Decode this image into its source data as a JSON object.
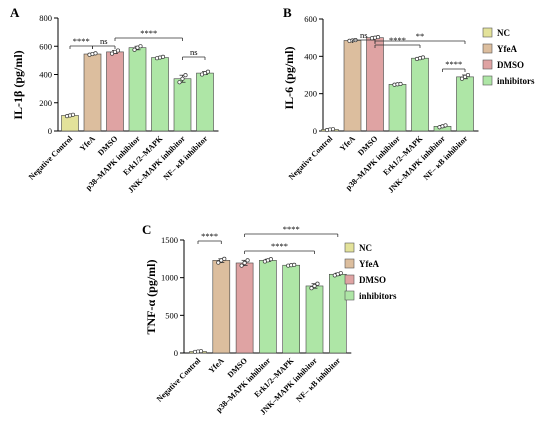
{
  "legend": [
    "NC",
    "YfeA",
    "DMSO",
    "inhibitors"
  ],
  "colors": {
    "NC": "#e3e29a",
    "YfeA": "#dcbe9e",
    "DMSO": "#dfa3a3",
    "inhibitors": "#aee6a6"
  },
  "chart_data": [
    {
      "panel": "A",
      "type": "bar",
      "ylabel": "IL-1β (pg/ml)",
      "ylim": [
        0,
        800
      ],
      "yticks": [
        0,
        200,
        400,
        600,
        800
      ],
      "categories": [
        "Negative Control",
        "YfeA",
        "DMSO",
        "p38–MAPK inhibitor",
        "Erk1/2–MAPK",
        "JNK–MAPK inhibitor",
        "NF– κB inhibitor"
      ],
      "groups": [
        "NC",
        "YfeA",
        "DMSO",
        "inhibitors",
        "inhibitors",
        "inhibitors",
        "inhibitors"
      ],
      "values": [
        110,
        545,
        560,
        590,
        520,
        370,
        410
      ],
      "points": [
        [
          105,
          110,
          115
        ],
        [
          540,
          545,
          550
        ],
        [
          548,
          560,
          570
        ],
        [
          575,
          590,
          600
        ],
        [
          515,
          520,
          525
        ],
        [
          345,
          370,
          395
        ],
        [
          400,
          410,
          420
        ]
      ],
      "significance": [
        {
          "from": 0,
          "to": 1,
          "label": "****"
        },
        {
          "from": 1,
          "to": 2,
          "label": "ns"
        },
        {
          "from": 2,
          "to": 5,
          "label": "****"
        },
        {
          "from": 5,
          "to": 6,
          "label": "ns"
        }
      ]
    },
    {
      "panel": "B",
      "type": "bar",
      "ylabel": "IL-6 (pg/ml)",
      "ylim": [
        0,
        600
      ],
      "yticks": [
        0,
        200,
        400,
        600
      ],
      "categories": [
        "Negative Control",
        "YfeA",
        "DMSO",
        "p38–MAPK inhibitor",
        "Erk1/2–MAPK",
        "JNK–MAPK inhibitor",
        "NF– κB inhibitor"
      ],
      "groups": [
        "NC",
        "YfeA",
        "DMSO",
        "inhibitors",
        "inhibitors",
        "inhibitors",
        "inhibitors"
      ],
      "values": [
        8,
        485,
        500,
        250,
        390,
        25,
        290
      ],
      "points": [
        [
          5,
          8,
          10
        ],
        [
          483,
          485,
          487
        ],
        [
          497,
          500,
          503
        ],
        [
          248,
          250,
          252
        ],
        [
          386,
          390,
          394
        ],
        [
          20,
          25,
          30
        ],
        [
          280,
          290,
          300
        ]
      ],
      "significance": [
        {
          "from": 1,
          "to": 2,
          "label": "ns"
        },
        {
          "from": 2,
          "to": 4,
          "label": "****"
        },
        {
          "from": 2,
          "to": 6,
          "label": "**"
        },
        {
          "from": 5,
          "to": 6,
          "label": "****"
        }
      ]
    },
    {
      "panel": "C",
      "type": "bar",
      "ylabel": "TNF-α (pg/ml)",
      "ylim": [
        0,
        1500
      ],
      "yticks": [
        0,
        500,
        1000,
        1500
      ],
      "categories": [
        "Negative Control",
        "YfeA",
        "DMSO",
        "p38–MAPK inhibitor",
        "Erk1/2–MAPK",
        "JNK–MAPK inhibitor",
        "NF– κB inhibitor"
      ],
      "groups": [
        "NC",
        "YfeA",
        "DMSO",
        "inhibitors",
        "inhibitors",
        "inhibitors",
        "inhibitors"
      ],
      "values": [
        20,
        1230,
        1195,
        1230,
        1165,
        890,
        1045
      ],
      "points": [
        [
          15,
          20,
          25
        ],
        [
          1200,
          1230,
          1250
        ],
        [
          1160,
          1195,
          1230
        ],
        [
          1215,
          1230,
          1245
        ],
        [
          1160,
          1165,
          1170
        ],
        [
          860,
          890,
          920
        ],
        [
          1030,
          1045,
          1060
        ]
      ],
      "significance": [
        {
          "from": 0,
          "to": 1,
          "label": "****"
        },
        {
          "from": 2,
          "to": 5,
          "label": "****"
        },
        {
          "from": 2,
          "to": 6,
          "label": "****"
        }
      ]
    }
  ]
}
